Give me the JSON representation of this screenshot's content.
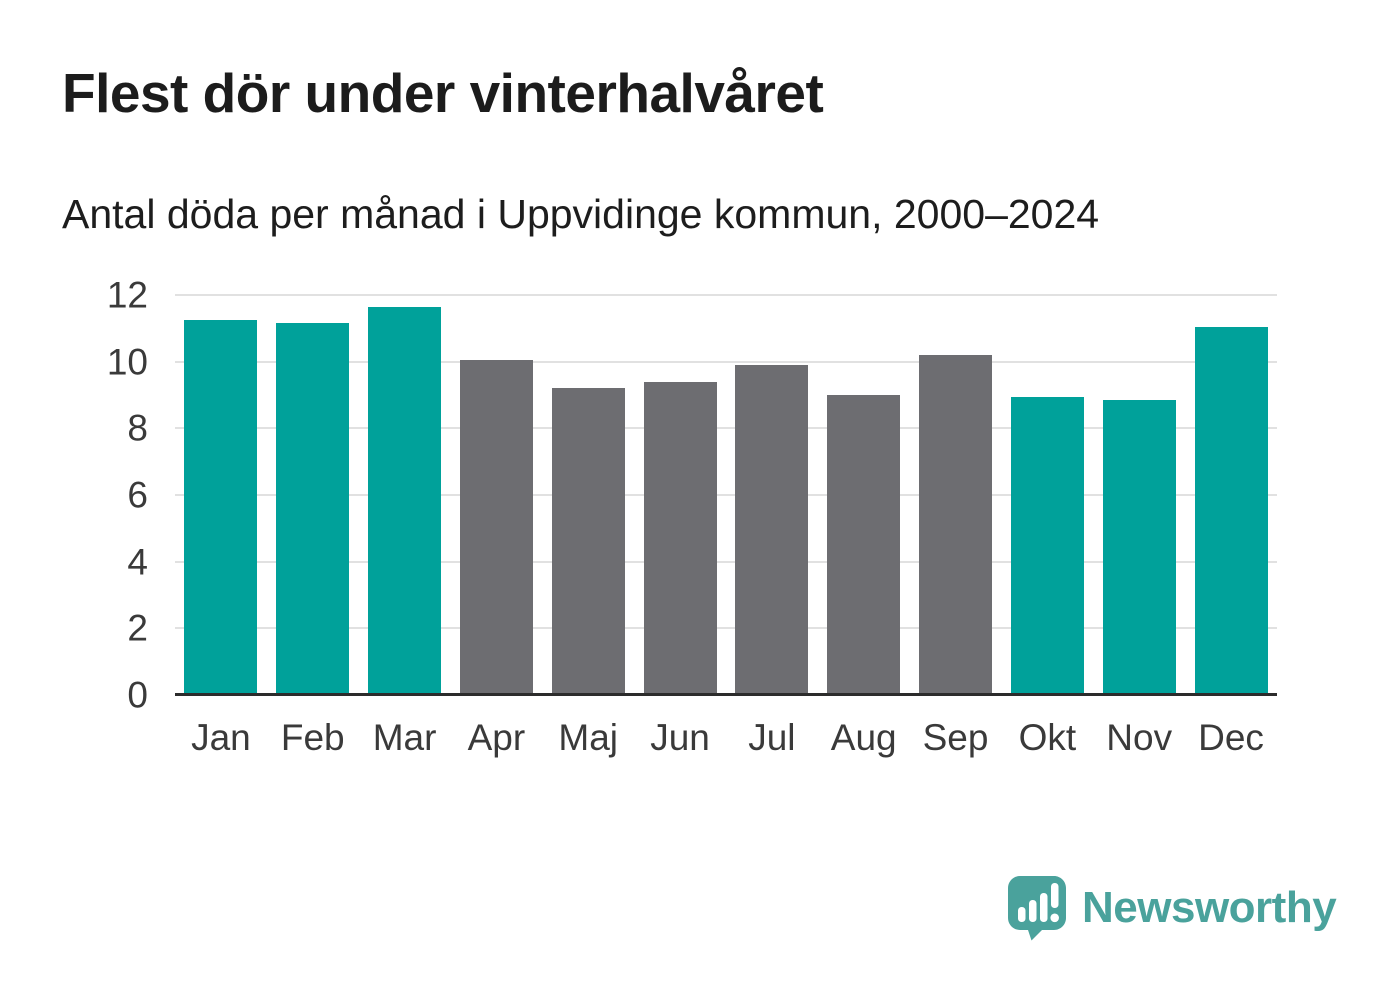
{
  "header": {
    "title": "Flest dör under vinterhalvåret",
    "subtitle": "Antal döda per månad i Uppvidinge kommun, 2000–2024"
  },
  "chart_data": {
    "type": "bar",
    "title": "Flest dör under vinterhalvåret",
    "subtitle": "Antal döda per månad i Uppvidinge kommun, 2000–2024",
    "categories": [
      "Jan",
      "Feb",
      "Mar",
      "Apr",
      "Maj",
      "Jun",
      "Jul",
      "Aug",
      "Sep",
      "Okt",
      "Nov",
      "Dec"
    ],
    "values": [
      11.25,
      11.15,
      11.65,
      10.05,
      9.2,
      9.4,
      9.9,
      9.0,
      10.2,
      8.95,
      8.85,
      11.05
    ],
    "bar_colors": [
      "#00a19a",
      "#00a19a",
      "#00a19a",
      "#6d6d71",
      "#6d6d71",
      "#6d6d71",
      "#6d6d71",
      "#6d6d71",
      "#6d6d71",
      "#00a19a",
      "#00a19a",
      "#00a19a"
    ],
    "highlight_color": "#00a19a",
    "muted_color": "#6d6d71",
    "xlabel": "",
    "ylabel": "",
    "ylim": [
      0,
      12
    ],
    "yticks": [
      0,
      2,
      4,
      6,
      8,
      10,
      12
    ],
    "grid": "horizontal",
    "gridline_color": "#e1e1e1",
    "axis_line_color": "#2c2c2c",
    "legend": "none"
  },
  "branding": {
    "logo_text": "Newsworthy",
    "logo_color": "#4aa29c"
  }
}
